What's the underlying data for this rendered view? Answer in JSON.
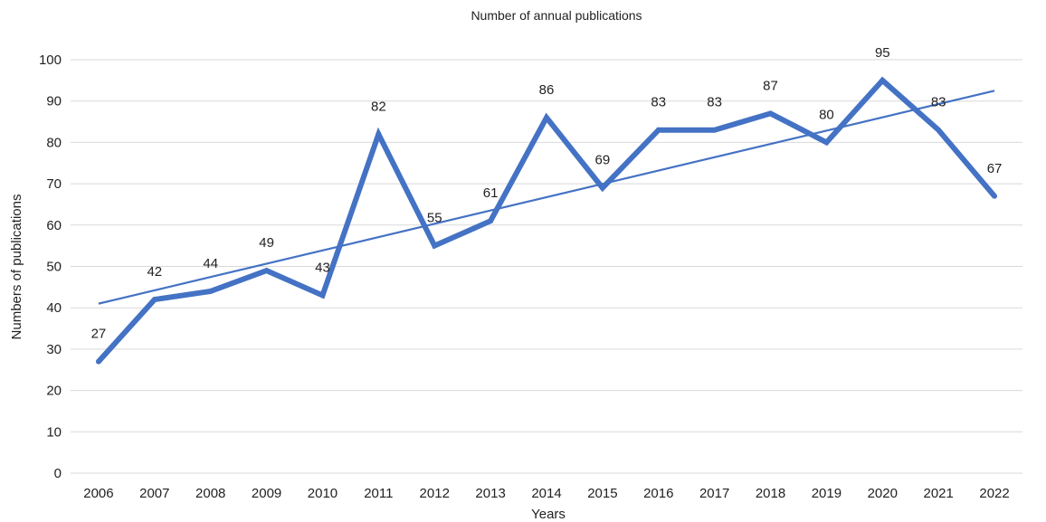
{
  "chart_data": {
    "type": "line",
    "title": "Number of annual publications",
    "xlabel": "Years",
    "ylabel": "Numbers of publications",
    "categories": [
      "2006",
      "2007",
      "2008",
      "2009",
      "2010",
      "2011",
      "2012",
      "2013",
      "2014",
      "2015",
      "2016",
      "2017",
      "2018",
      "2019",
      "2020",
      "2021",
      "2022"
    ],
    "series": [
      {
        "values": [
          27,
          42,
          44,
          49,
          43,
          82,
          55,
          61,
          86,
          69,
          83,
          83,
          87,
          80,
          95,
          83,
          67
        ],
        "color": "#4472c4"
      }
    ],
    "trendline": {
      "type": "linear",
      "start": 41,
      "end": 92.5,
      "color": "#4472c4"
    },
    "ylim": [
      0,
      100
    ],
    "yticks": [
      0,
      10,
      20,
      30,
      40,
      50,
      60,
      70,
      80,
      90,
      100
    ],
    "grid": true,
    "legend": "none",
    "data_labels": true
  }
}
